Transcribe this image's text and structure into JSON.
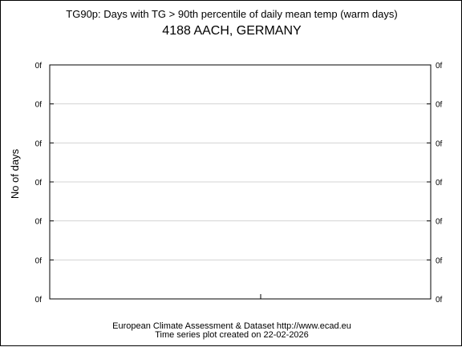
{
  "chart_data": {
    "type": "line",
    "title": "TG90p: Days with TG > 90th percentile of daily mean temp (warm days)",
    "subtitle": "4188 AACH, GERMANY",
    "ylabel": "No of days",
    "xlabel": "",
    "y_tick_labels": [
      "0f",
      "0f",
      "0f",
      "0f",
      "0f",
      "0f",
      "0f"
    ],
    "grid": true,
    "series": [],
    "footer": {
      "line1": "European Climate Assessment & Dataset  http://www.ecad.eu",
      "line2": "Time series plot created on 22-02-2026"
    }
  }
}
